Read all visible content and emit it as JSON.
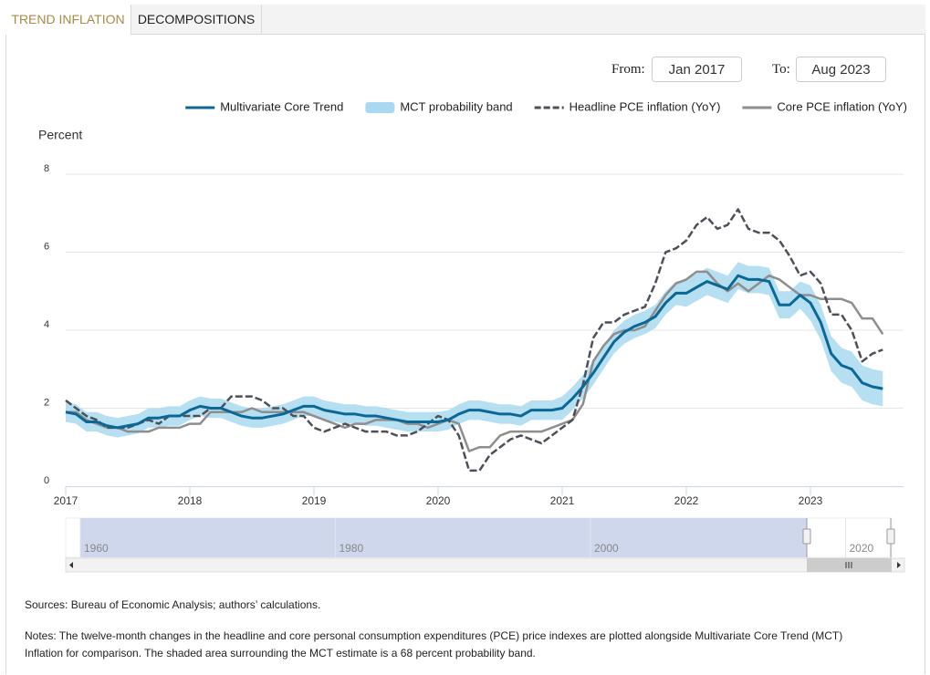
{
  "tabs": [
    "TREND INFLATION",
    "DECOMPOSITIONS"
  ],
  "range": {
    "from_label": "From:",
    "from": "Jan 2017",
    "to_label": "To:",
    "to": "Aug 2023"
  },
  "chart_data": {
    "type": "line",
    "y_label": "Percent",
    "x": [
      2017,
      2017.083,
      2017.167,
      2017.25,
      2017.333,
      2017.417,
      2017.5,
      2017.583,
      2017.667,
      2017.75,
      2017.833,
      2017.917,
      2018,
      2018.083,
      2018.167,
      2018.25,
      2018.333,
      2018.417,
      2018.5,
      2018.583,
      2018.667,
      2018.75,
      2018.833,
      2018.917,
      2019,
      2019.083,
      2019.167,
      2019.25,
      2019.333,
      2019.417,
      2019.5,
      2019.583,
      2019.667,
      2019.75,
      2019.833,
      2019.917,
      2020,
      2020.083,
      2020.167,
      2020.25,
      2020.333,
      2020.417,
      2020.5,
      2020.583,
      2020.667,
      2020.75,
      2020.833,
      2020.917,
      2021,
      2021.083,
      2021.167,
      2021.25,
      2021.333,
      2021.417,
      2021.5,
      2021.583,
      2021.667,
      2021.75,
      2021.833,
      2021.917,
      2022,
      2022.083,
      2022.167,
      2022.25,
      2022.333,
      2022.417,
      2022.5,
      2022.583,
      2022.667,
      2022.75,
      2022.833,
      2022.917,
      2023,
      2023.083,
      2023.167,
      2023.25,
      2023.333,
      2023.417,
      2023.5,
      2023.583
    ],
    "xlim": [
      2017,
      2023.75
    ],
    "xticks": [
      2017,
      2018,
      2019,
      2020,
      2021,
      2022,
      2023
    ],
    "ylim": [
      0,
      8
    ],
    "yticks": [
      0,
      2,
      4,
      6,
      8
    ],
    "grid": true,
    "series": [
      {
        "name": "Multivariate Core Trend",
        "color": "#0b6796",
        "style": "solid",
        "values": [
          1.9,
          1.85,
          1.65,
          1.65,
          1.55,
          1.5,
          1.55,
          1.6,
          1.75,
          1.75,
          1.8,
          1.8,
          1.95,
          2.05,
          2.0,
          2.0,
          1.9,
          1.8,
          1.75,
          1.75,
          1.8,
          1.85,
          1.95,
          2.05,
          2.05,
          1.95,
          1.9,
          1.85,
          1.85,
          1.8,
          1.8,
          1.75,
          1.7,
          1.65,
          1.65,
          1.65,
          1.65,
          1.7,
          1.85,
          1.95,
          1.95,
          1.9,
          1.85,
          1.85,
          1.8,
          1.95,
          1.95,
          1.95,
          2.0,
          2.25,
          2.55,
          2.9,
          3.3,
          3.7,
          3.95,
          4.1,
          4.2,
          4.35,
          4.7,
          4.95,
          4.95,
          5.1,
          5.25,
          5.15,
          5.05,
          5.4,
          5.3,
          5.3,
          5.25,
          4.65,
          4.65,
          4.9,
          4.7,
          4.2,
          3.4,
          3.1,
          3.0,
          2.65,
          2.55,
          2.5
        ]
      },
      {
        "name": "MCT probability band",
        "color": "#a9d9f0",
        "style": "band",
        "low": [
          1.65,
          1.6,
          1.4,
          1.4,
          1.3,
          1.25,
          1.3,
          1.35,
          1.5,
          1.5,
          1.55,
          1.55,
          1.7,
          1.8,
          1.75,
          1.75,
          1.65,
          1.55,
          1.5,
          1.5,
          1.55,
          1.6,
          1.7,
          1.8,
          1.8,
          1.7,
          1.65,
          1.6,
          1.6,
          1.55,
          1.55,
          1.5,
          1.45,
          1.4,
          1.4,
          1.4,
          1.4,
          1.45,
          1.6,
          1.7,
          1.7,
          1.65,
          1.6,
          1.6,
          1.55,
          1.7,
          1.7,
          1.7,
          1.7,
          1.95,
          2.25,
          2.6,
          3.0,
          3.4,
          3.65,
          3.8,
          3.9,
          4.05,
          4.4,
          4.65,
          4.6,
          4.75,
          4.9,
          4.8,
          4.7,
          5.05,
          4.95,
          4.95,
          4.9,
          4.3,
          4.3,
          4.55,
          4.25,
          3.75,
          2.95,
          2.65,
          2.55,
          2.2,
          2.1,
          2.05
        ],
        "high": [
          2.15,
          2.1,
          1.9,
          1.9,
          1.8,
          1.75,
          1.8,
          1.85,
          2.0,
          2.0,
          2.05,
          2.05,
          2.2,
          2.3,
          2.25,
          2.25,
          2.15,
          2.05,
          2.0,
          2.0,
          2.05,
          2.1,
          2.2,
          2.3,
          2.3,
          2.2,
          2.15,
          2.1,
          2.1,
          2.05,
          2.05,
          2.0,
          1.95,
          1.9,
          1.9,
          1.9,
          1.9,
          1.95,
          2.1,
          2.2,
          2.2,
          2.15,
          2.1,
          2.1,
          2.05,
          2.2,
          2.2,
          2.2,
          2.3,
          2.55,
          2.85,
          3.2,
          3.6,
          4.0,
          4.25,
          4.4,
          4.5,
          4.65,
          5.0,
          5.25,
          5.3,
          5.45,
          5.6,
          5.5,
          5.4,
          5.75,
          5.65,
          5.65,
          5.6,
          5.0,
          5.0,
          5.25,
          5.15,
          4.65,
          3.85,
          3.55,
          3.45,
          3.1,
          3.0,
          2.95
        ]
      },
      {
        "name": "Headline PCE inflation (YoY)",
        "color": "#4d5058",
        "style": "dashed",
        "values": [
          2.2,
          2.0,
          1.8,
          1.7,
          1.5,
          1.5,
          1.5,
          1.6,
          1.7,
          1.6,
          1.8,
          1.8,
          1.8,
          1.8,
          2.0,
          2.0,
          2.3,
          2.3,
          2.3,
          2.2,
          2.0,
          2.0,
          1.8,
          1.8,
          1.5,
          1.4,
          1.5,
          1.6,
          1.5,
          1.4,
          1.4,
          1.4,
          1.3,
          1.3,
          1.4,
          1.6,
          1.8,
          1.7,
          1.3,
          0.4,
          0.4,
          0.8,
          1.0,
          1.2,
          1.3,
          1.2,
          1.1,
          1.3,
          1.5,
          1.7,
          2.6,
          3.8,
          4.2,
          4.2,
          4.4,
          4.5,
          4.6,
          5.2,
          6.0,
          6.1,
          6.3,
          6.7,
          6.9,
          6.6,
          6.7,
          7.1,
          6.6,
          6.5,
          6.5,
          6.3,
          5.9,
          5.4,
          5.5,
          5.2,
          4.4,
          4.4,
          4.0,
          3.2,
          3.4,
          3.5
        ]
      },
      {
        "name": "Core PCE inflation (YoY)",
        "color": "#8e8e8e",
        "style": "solid",
        "values": [
          1.9,
          1.9,
          1.7,
          1.6,
          1.5,
          1.5,
          1.4,
          1.4,
          1.4,
          1.5,
          1.5,
          1.5,
          1.6,
          1.6,
          1.9,
          1.9,
          1.9,
          1.9,
          2.0,
          1.9,
          1.9,
          1.9,
          1.9,
          1.9,
          1.8,
          1.7,
          1.6,
          1.5,
          1.6,
          1.6,
          1.7,
          1.7,
          1.7,
          1.6,
          1.6,
          1.5,
          1.6,
          1.7,
          1.6,
          0.9,
          1.0,
          1.0,
          1.3,
          1.4,
          1.4,
          1.4,
          1.4,
          1.5,
          1.6,
          1.7,
          2.1,
          3.2,
          3.6,
          3.9,
          4.0,
          4.0,
          4.1,
          4.5,
          4.9,
          5.2,
          5.3,
          5.5,
          5.5,
          5.2,
          5.0,
          5.2,
          5.0,
          5.2,
          5.4,
          5.3,
          5.1,
          4.9,
          4.9,
          4.8,
          4.8,
          4.8,
          4.7,
          4.3,
          4.3,
          3.9
        ]
      }
    ],
    "navigator": {
      "xticks": [
        1960,
        1980,
        2000,
        2020
      ]
    }
  },
  "sources": "Sources: Bureau of Economic Analysis; authors’ calculations.",
  "notes": "Notes: The twelve-month changes in the headline and core personal consumption expenditures (PCE) price indexes are plotted alongside Multivariate Core Trend (MCT) Inflation for comparison. The shaded area surrounding the MCT estimate is a 68 percent probability band."
}
